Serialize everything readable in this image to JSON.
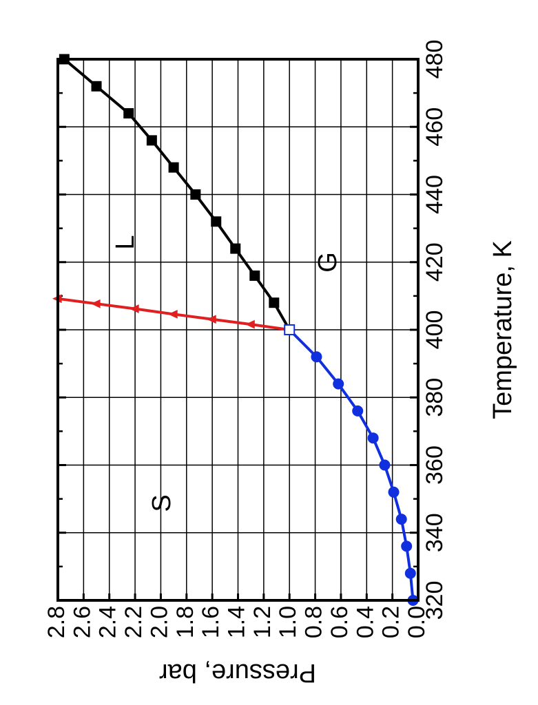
{
  "chart_data": {
    "type": "line",
    "orientation": "rotated 90 degrees counter-clockwise (x axis on the right edge, y axis along the bottom edge)",
    "title": "",
    "xlabel": "Temperature, K",
    "ylabel": "Pressure, bar",
    "xlim": [
      320,
      480
    ],
    "ylim": [
      0,
      2.8
    ],
    "x_ticks": [
      "320",
      "340",
      "360",
      "380",
      "400",
      "420",
      "440",
      "460",
      "480"
    ],
    "y_ticks": [
      "0.0",
      "0.2",
      "0.4",
      "0.6",
      "0.8",
      "1.0",
      "1.2",
      "1.4",
      "1.6",
      "1.8",
      "2.0",
      "2.2",
      "2.4",
      "2.6",
      "2.8"
    ],
    "grid": true,
    "legend": "none",
    "region_labels": [
      "S",
      "L",
      "G"
    ],
    "series": [
      {
        "boundary": "solid-gas",
        "color": "#1030e0",
        "marker": "circle",
        "x": [
          320,
          328,
          336,
          344,
          352,
          360,
          368,
          376,
          384,
          392,
          400
        ],
        "y": [
          0.04,
          0.06,
          0.09,
          0.13,
          0.19,
          0.26,
          0.35,
          0.47,
          0.62,
          0.79,
          1.0
        ]
      },
      {
        "boundary": "solid-liquid",
        "color": "#e02020",
        "marker": "triangle",
        "x": [
          400,
          401.6,
          403.1,
          404.6,
          406.2,
          407.7,
          409.2
        ],
        "y": [
          1.0,
          1.3,
          1.6,
          1.9,
          2.2,
          2.5,
          2.8
        ]
      },
      {
        "boundary": "liquid-gas",
        "color": "#000000",
        "marker": "square",
        "x": [
          400,
          408,
          416,
          424,
          432,
          440,
          448,
          456,
          464,
          472,
          480
        ],
        "y": [
          1.0,
          1.12,
          1.27,
          1.42,
          1.57,
          1.73,
          1.9,
          2.07,
          2.25,
          2.5,
          2.75
        ]
      }
    ]
  }
}
